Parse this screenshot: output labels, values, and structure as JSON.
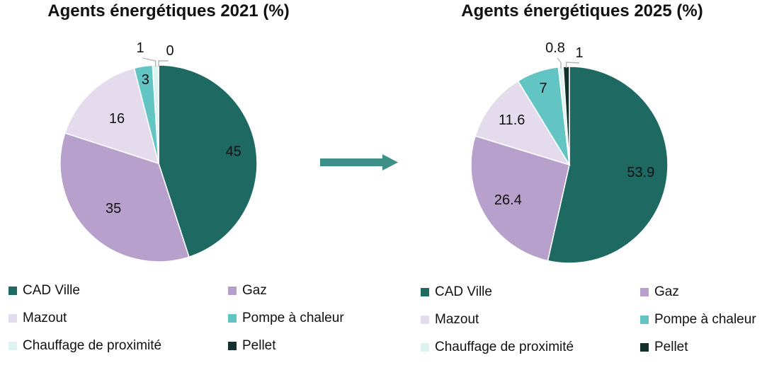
{
  "chart_data": [
    {
      "type": "pie",
      "title": "Agents énergétiques 2021 (%)",
      "slices": [
        {
          "label": "CAD Ville",
          "value": 45,
          "display": "45",
          "color": "#1e6a63"
        },
        {
          "label": "Gaz",
          "value": 35,
          "display": "35",
          "color": "#b7a0cc"
        },
        {
          "label": "Mazout",
          "value": 16,
          "display": "16",
          "color": "#e4dcec"
        },
        {
          "label": "Pompe à chaleur",
          "value": 3,
          "display": "3",
          "color": "#62c4c3"
        },
        {
          "label": "Chauffage de proximité",
          "value": 1,
          "display": "1",
          "color": "#dcf3f1"
        },
        {
          "label": "Pellet",
          "value": 0,
          "display": "0",
          "color": "#13302c"
        }
      ],
      "legend_position": "bottom"
    },
    {
      "type": "pie",
      "title": "Agents énergétiques 2025 (%)",
      "slices": [
        {
          "label": "CAD Ville",
          "value": 53.9,
          "display": "53.9",
          "color": "#1e6a63"
        },
        {
          "label": "Gaz",
          "value": 26.4,
          "display": "26.4",
          "color": "#b7a0cc"
        },
        {
          "label": "Mazout",
          "value": 11.6,
          "display": "11.6",
          "color": "#e4dcec"
        },
        {
          "label": "Pompe à chaleur",
          "value": 7,
          "display": "7",
          "color": "#62c4c3"
        },
        {
          "label": "Chauffage de proximité",
          "value": 0.8,
          "display": "0.8",
          "color": "#dcf3f1"
        },
        {
          "label": "Pellet",
          "value": 1,
          "display": "1",
          "color": "#13302c"
        }
      ],
      "legend_position": "bottom"
    }
  ],
  "arrow_color": "#3d8f88"
}
